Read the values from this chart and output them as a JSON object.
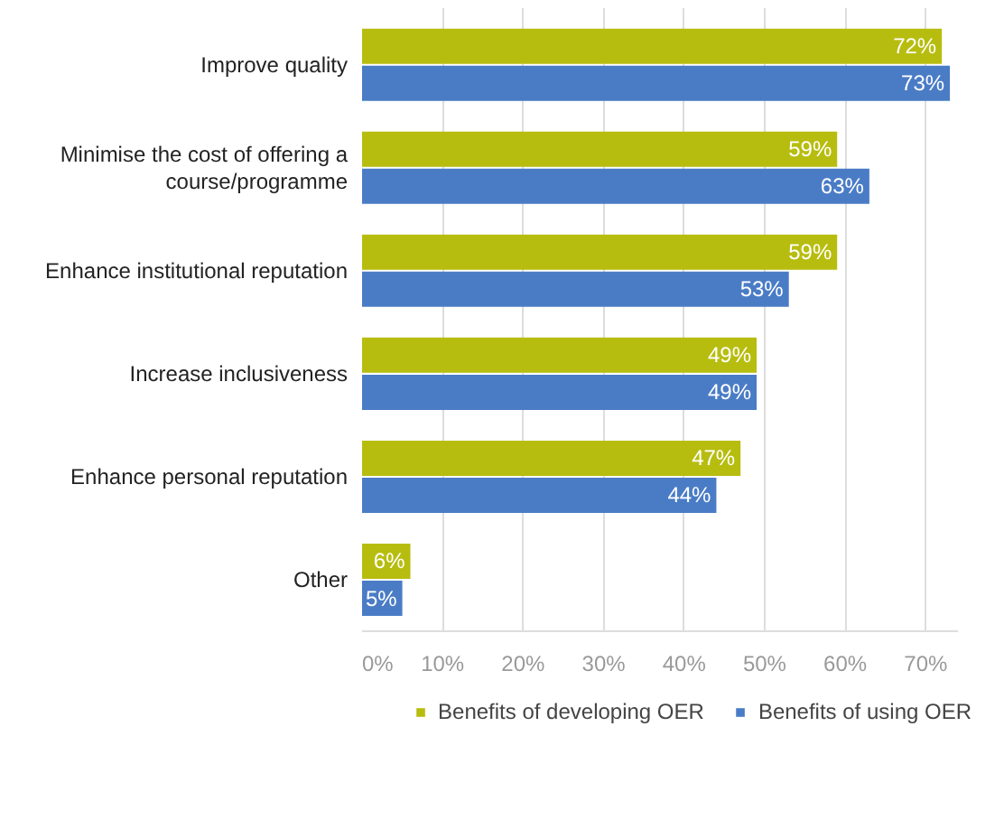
{
  "chart_data": {
    "type": "bar",
    "orientation": "horizontal",
    "categories": [
      "Improve quality",
      "Minimise the cost of offering a course/programme",
      "Enhance institutional reputation",
      "Increase inclusiveness",
      "Enhance personal reputation",
      "Other"
    ],
    "series": [
      {
        "name": "Benefits of developing OER",
        "color": "#b7bd0f",
        "values": [
          72,
          59,
          59,
          49,
          47,
          6
        ],
        "value_labels": [
          "72%",
          "59%",
          "59%",
          "49%",
          "47%",
          "6%"
        ]
      },
      {
        "name": "Benefits of using OER",
        "color": "#4a7cc6",
        "values": [
          73,
          63,
          53,
          49,
          44,
          5
        ],
        "value_labels": [
          "73%",
          "63%",
          "53%",
          "49%",
          "44%",
          "5%"
        ]
      }
    ],
    "xlim": [
      0,
      74
    ],
    "xticks": [
      {
        "value": 0,
        "label": "0%"
      },
      {
        "value": 10,
        "label": "10%"
      },
      {
        "value": 20,
        "label": "20%"
      },
      {
        "value": 30,
        "label": "30%"
      },
      {
        "value": 40,
        "label": "40%"
      },
      {
        "value": 50,
        "label": "50%"
      },
      {
        "value": 60,
        "label": "60%"
      },
      {
        "value": 70,
        "label": "70%"
      }
    ],
    "grid": "x",
    "legend": "bottom"
  }
}
